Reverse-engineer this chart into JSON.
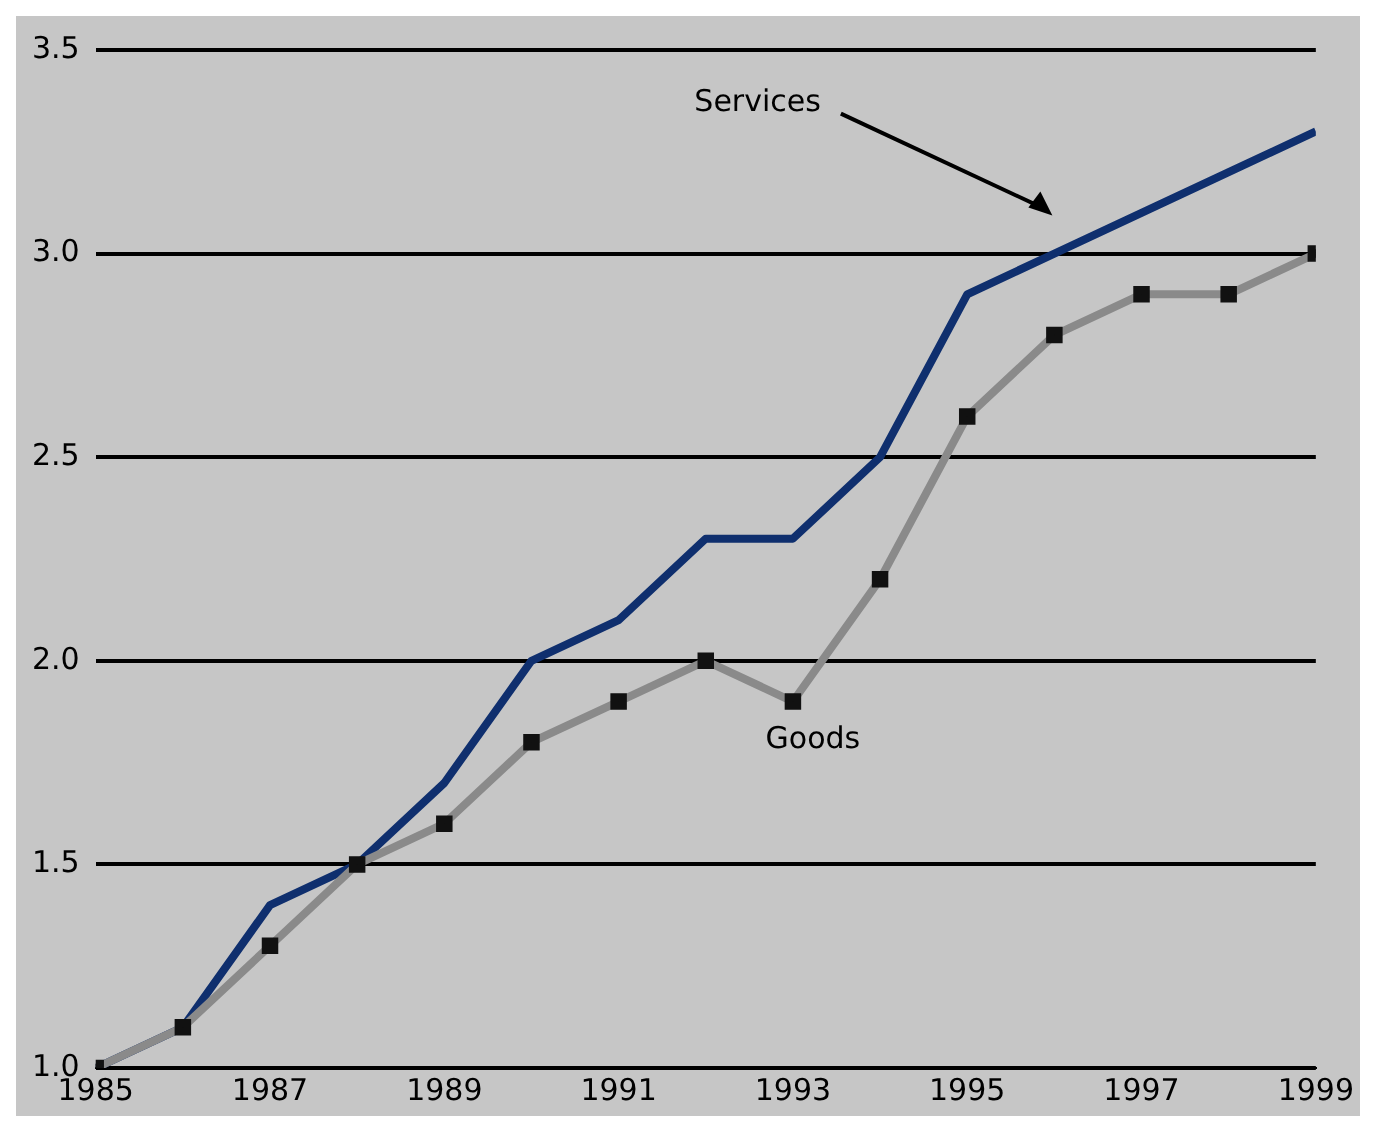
{
  "chart_data": {
    "type": "line",
    "x": [
      1985,
      1986,
      1987,
      1988,
      1989,
      1990,
      1991,
      1992,
      1993,
      1994,
      1995,
      1996,
      1997,
      1998,
      1999
    ],
    "series": [
      {
        "name": "Services",
        "color": "#0f2f6e",
        "marker": "none",
        "values": [
          1.0,
          1.1,
          1.4,
          1.5,
          1.7,
          2.0,
          2.1,
          2.3,
          2.3,
          2.5,
          2.9,
          3.0,
          3.1,
          3.2,
          3.3
        ]
      },
      {
        "name": "Goods",
        "color": "#8a8a8a",
        "marker": "square",
        "values": [
          1.0,
          1.1,
          1.3,
          1.5,
          1.6,
          1.8,
          1.9,
          2.0,
          1.9,
          2.2,
          2.6,
          2.8,
          2.9,
          2.9,
          3.0
        ]
      }
    ],
    "xlim": [
      1985,
      1999
    ],
    "xticks": [
      1985,
      1987,
      1989,
      1991,
      1993,
      1995,
      1997,
      1999
    ],
    "ylim": [
      1.0,
      3.5
    ],
    "yticks": [
      {
        "value": 1,
        "label": "1.0"
      },
      1.5,
      {
        "value": 2,
        "label": "2.0"
      },
      2.5,
      {
        "value": 3,
        "label": "3.0"
      },
      3.5
    ],
    "grid": "y",
    "legend": false,
    "line_style": "solid"
  }
}
